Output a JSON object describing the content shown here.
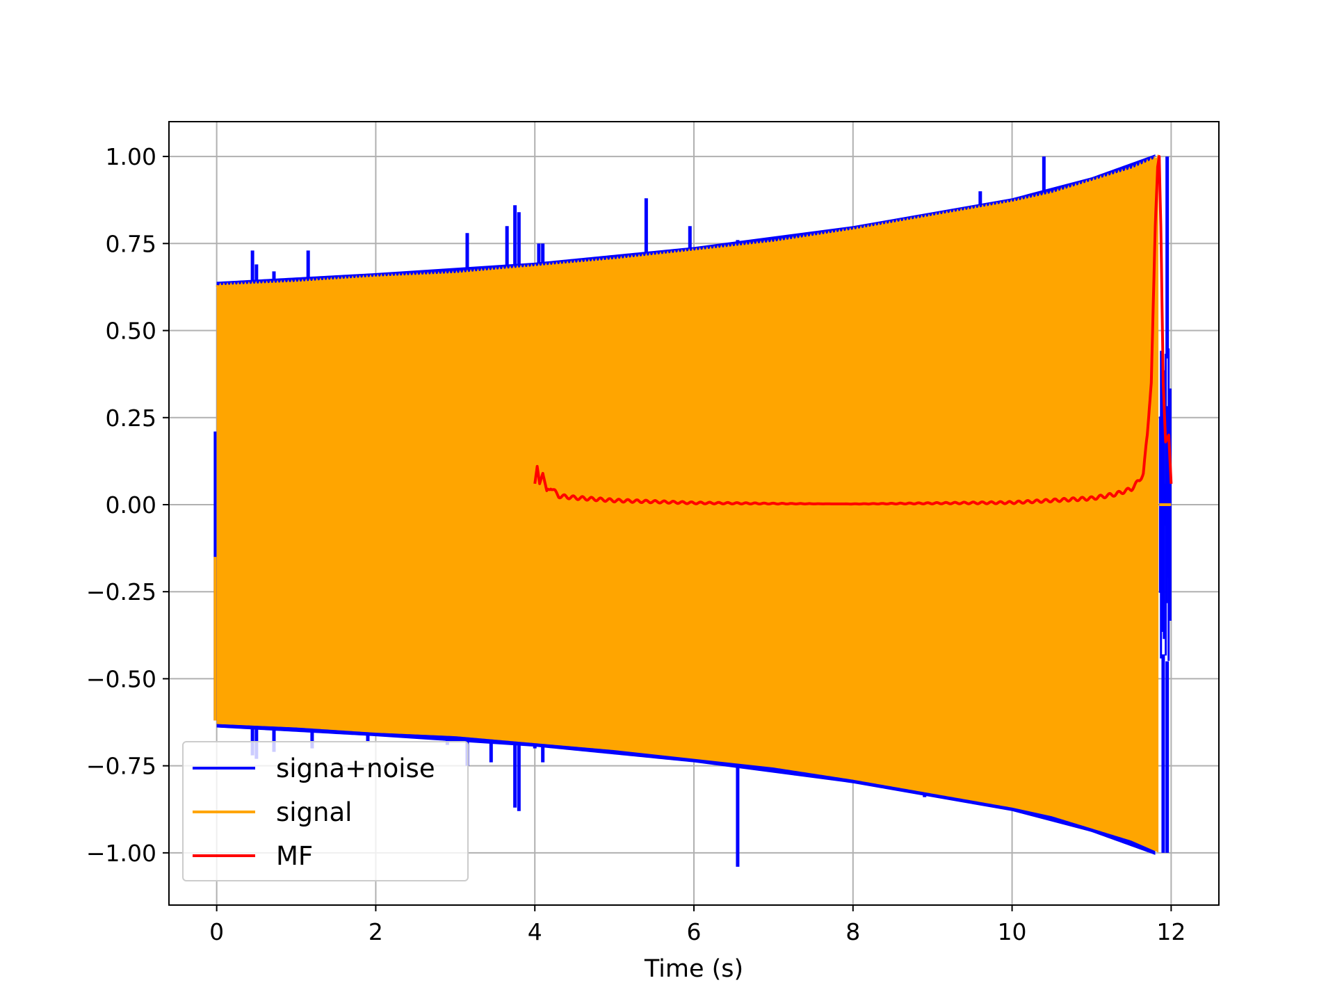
{
  "chart_data": {
    "type": "line",
    "title": "",
    "xlabel": "Time (s)",
    "ylabel": "",
    "xlim": [
      -0.6,
      12.6
    ],
    "ylim": [
      -1.15,
      1.1
    ],
    "grid": true,
    "legend_placement": "lower-left",
    "x_ticks": [
      0,
      2,
      4,
      6,
      8,
      10,
      12
    ],
    "x_tick_labels": [
      "0",
      "2",
      "4",
      "6",
      "8",
      "10",
      "12"
    ],
    "y_ticks": [
      1.0,
      0.75,
      0.5,
      0.25,
      0.0,
      -0.25,
      -0.5,
      -0.75,
      -1.0
    ],
    "y_tick_labels": [
      "1.00",
      "0.75",
      "0.50",
      "0.25",
      "0.00",
      "−0.25",
      "−0.50",
      "−0.75",
      "−1.00"
    ],
    "series": [
      {
        "name": "signa+noise",
        "color": "#0000ff",
        "description_values": {
          "envelope_x": [
            0,
            2,
            4,
            6,
            8,
            10,
            11,
            11.85
          ],
          "envelope": [
            0.63,
            0.655,
            0.685,
            0.73,
            0.79,
            0.87,
            0.93,
            1.0
          ],
          "spikes": [
            [
              0.45,
              0.73
            ],
            [
              0.5,
              0.69
            ],
            [
              0.45,
              -0.72
            ],
            [
              0.5,
              -0.73
            ],
            [
              0.72,
              0.67
            ],
            [
              0.72,
              -0.71
            ],
            [
              1.15,
              0.73
            ],
            [
              1.2,
              -0.7
            ],
            [
              1.35,
              0.65
            ],
            [
              1.9,
              -0.68
            ],
            [
              2.9,
              -0.69
            ],
            [
              3.15,
              0.78
            ],
            [
              3.15,
              -0.75
            ],
            [
              3.45,
              -0.74
            ],
            [
              3.65,
              0.8
            ],
            [
              3.75,
              0.86
            ],
            [
              3.8,
              0.84
            ],
            [
              3.75,
              -0.87
            ],
            [
              3.8,
              -0.88
            ],
            [
              4.0,
              -0.7
            ],
            [
              4.05,
              0.75
            ],
            [
              4.1,
              0.75
            ],
            [
              4.1,
              -0.74
            ],
            [
              5.4,
              0.88
            ],
            [
              5.95,
              0.8
            ],
            [
              6.55,
              0.76
            ],
            [
              6.55,
              -1.04
            ],
            [
              8.9,
              -0.84
            ],
            [
              9.6,
              0.9
            ],
            [
              10.4,
              1.0
            ],
            [
              11.95,
              0.42
            ],
            [
              11.95,
              -0.45
            ],
            [
              11.9,
              -0.43
            ]
          ]
        }
      },
      {
        "name": "signal",
        "color": "#ffa500",
        "description_values": {
          "x": [
            0,
            1,
            2,
            3,
            4,
            5,
            6,
            7,
            8,
            9,
            10,
            10.5,
            11,
            11.5,
            11.85
          ],
          "upper_envelope": [
            0.63,
            0.64,
            0.655,
            0.665,
            0.685,
            0.705,
            0.73,
            0.755,
            0.79,
            0.83,
            0.87,
            0.895,
            0.93,
            0.965,
            1.0
          ],
          "lower_envelope": [
            -0.63,
            -0.64,
            -0.655,
            -0.665,
            -0.685,
            -0.705,
            -0.73,
            -0.755,
            -0.79,
            -0.83,
            -0.87,
            -0.895,
            -0.93,
            -0.965,
            -1.0
          ],
          "end_x": 11.85,
          "after_end_value": 0.0
        }
      },
      {
        "name": "MF",
        "color": "#ff0000",
        "x": [
          4.0,
          4.03,
          4.06,
          4.1,
          4.15,
          4.2,
          4.3,
          4.5,
          5.0,
          6.0,
          7.0,
          8.0,
          9.0,
          10.0,
          10.5,
          11.0,
          11.3,
          11.5,
          11.6,
          11.65,
          11.7,
          11.75,
          11.8,
          11.83,
          11.85,
          11.87,
          11.9,
          11.93,
          11.97,
          12.0
        ],
        "values": [
          0.06,
          0.11,
          0.06,
          0.09,
          0.04,
          0.05,
          0.025,
          0.02,
          0.012,
          0.005,
          0.003,
          0.002,
          0.004,
          0.006,
          0.012,
          0.018,
          0.03,
          0.045,
          0.07,
          0.09,
          0.2,
          0.35,
          0.8,
          0.97,
          1.0,
          0.8,
          0.35,
          0.18,
          0.2,
          0.06
        ]
      }
    ]
  },
  "legend": {
    "entries": [
      "signa+noise",
      "signal",
      "MF"
    ]
  }
}
